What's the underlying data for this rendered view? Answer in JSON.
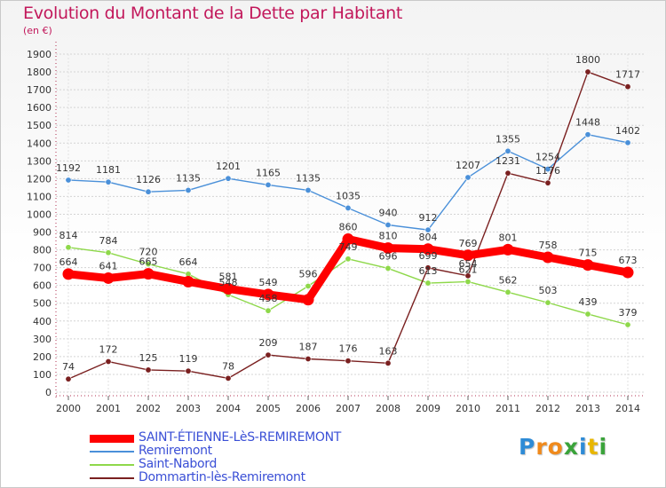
{
  "title": "Evolution du Montant de la Dette par Habitant",
  "unit_label": "(en €)",
  "logo": {
    "letters": [
      "P",
      "r",
      "o",
      "x",
      "i",
      "t",
      "i"
    ],
    "colors": [
      "#2e8bd6",
      "#f08a1c",
      "#f08a1c",
      "#3aa33a",
      "#2e8bd6",
      "#e8b600",
      "#3aa33a"
    ]
  },
  "chart_data": {
    "type": "line",
    "x": [
      "2000",
      "2001",
      "2002",
      "2003",
      "2004",
      "2005",
      "2006",
      "2007",
      "2008",
      "2009",
      "2010",
      "2011",
      "2012",
      "2013",
      "2014"
    ],
    "ylim": [
      0,
      1900
    ],
    "yticks": [
      0,
      100,
      200,
      300,
      400,
      500,
      600,
      700,
      800,
      900,
      1000,
      1100,
      1200,
      1300,
      1400,
      1500,
      1600,
      1700,
      1800,
      1900
    ],
    "grid": true,
    "legend_position": "bottom-left",
    "series": [
      {
        "name": "SAINT-ÉTIENNE-LèS-REMIREMONT",
        "color": "#ff0000",
        "values": [
          664,
          641,
          665,
          621,
          581,
          549,
          520,
          860,
          810,
          804,
          769,
          801,
          758,
          715,
          673
        ],
        "labels": [
          "664",
          "641",
          "665",
          "",
          "581",
          "549",
          "",
          "860",
          "810",
          "804",
          "769",
          "801",
          "758",
          "715",
          "673"
        ]
      },
      {
        "name": "Remiremont",
        "color": "#4a90d9",
        "values": [
          1192,
          1181,
          1126,
          1135,
          1201,
          1165,
          1135,
          1035,
          940,
          912,
          1207,
          1355,
          1254,
          1448,
          1402
        ],
        "labels": [
          "1192",
          "1181",
          "1126",
          "1135",
          "1201",
          "1165",
          "1135",
          "1035",
          "940",
          "912",
          "1207",
          "1355",
          "1254",
          "1448",
          "1402"
        ]
      },
      {
        "name": "Saint-Nabord",
        "color": "#8ed84a",
        "values": [
          814,
          784,
          720,
          664,
          548,
          458,
          596,
          749,
          696,
          613,
          621,
          562,
          503,
          439,
          379
        ],
        "labels": [
          "814",
          "784",
          "720",
          "664",
          "548",
          "458",
          "596",
          "749",
          "696",
          "613",
          "621",
          "562",
          "503",
          "439",
          "379"
        ]
      },
      {
        "name": "Dommartin-lès-Remiremont",
        "color": "#7a2020",
        "values": [
          74,
          172,
          125,
          119,
          78,
          209,
          187,
          176,
          163,
          699,
          654,
          1231,
          1176,
          1800,
          1717
        ],
        "labels": [
          "74",
          "172",
          "125",
          "119",
          "78",
          "209",
          "187",
          "176",
          "163",
          "699",
          "654",
          "1231",
          "1176",
          "1800",
          "1717"
        ]
      }
    ]
  }
}
